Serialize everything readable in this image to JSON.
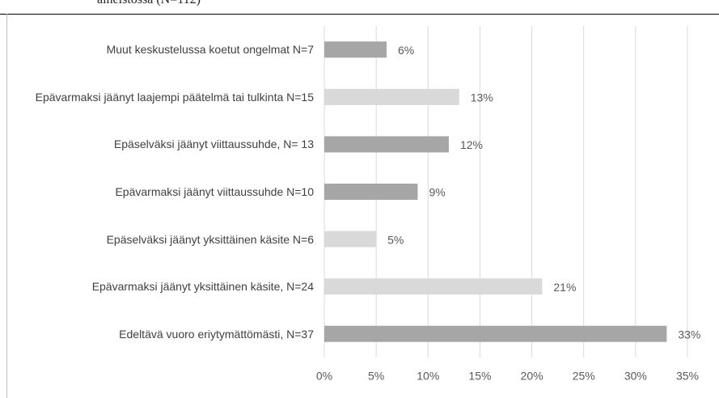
{
  "chart_data": {
    "type": "hbar",
    "title": "aineistossa (N=112)",
    "categories": [
      "Muut keskustelussa koetut ongelmat N=7",
      "Epävarmaksi jäänyt laajempi päätelmä tai tulkinta N=15",
      "Epäselväksi jäänyt viittaussuhde, N= 13",
      "Epävarmaksi jäänyt viittaussuhde N=10",
      "Epäselväksi jäänyt yksittäinen käsite N=6",
      "Epävarmaksi jäänyt yksittäinen käsite, N=24",
      "Edeltävä vuoro eriytymättömästi, N=37"
    ],
    "values": [
      6,
      13,
      12,
      9,
      5,
      21,
      33
    ],
    "value_labels": [
      "6%",
      "13%",
      "12%",
      "9%",
      "5%",
      "21%",
      "33%"
    ],
    "colors": [
      "#a6a6a6",
      "#d9d9d9",
      "#a6a6a6",
      "#a6a6a6",
      "#d9d9d9",
      "#d9d9d9",
      "#a6a6a6"
    ],
    "xlim": [
      0,
      35
    ],
    "xticks": [
      {
        "value": 0,
        "label": "0%"
      },
      {
        "value": 5,
        "label": "5%"
      },
      {
        "value": 10,
        "label": "10%"
      },
      {
        "value": 15,
        "label": "15%"
      },
      {
        "value": 20,
        "label": "20%"
      },
      {
        "value": 25,
        "label": "25%"
      },
      {
        "value": 30,
        "label": "30%"
      },
      {
        "value": 35,
        "label": "35%"
      }
    ],
    "grid": true
  }
}
